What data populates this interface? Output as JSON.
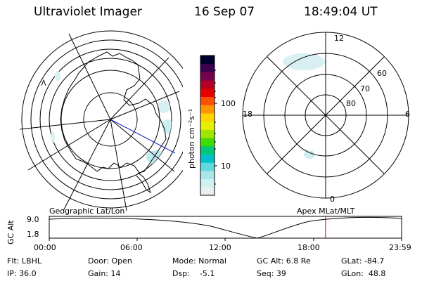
{
  "header": {
    "instrument": "Ultraviolet Imager",
    "date": "16 Sep 07",
    "time": "18:49:04 UT"
  },
  "colorbar": {
    "unit_label": "photon cm⁻²s⁻¹",
    "ticks": [
      "100",
      "10"
    ],
    "colors": [
      "#eeeeee",
      "#d0f0f0",
      "#a8e6e8",
      "#60d8e0",
      "#00c0d0",
      "#00c878",
      "#40dc00",
      "#a0e600",
      "#e6f000",
      "#ffd200",
      "#ff9600",
      "#ff5000",
      "#e60000",
      "#b40028",
      "#780050",
      "#3c0050",
      "#000030"
    ]
  },
  "left_map": {
    "label": "Geographic Lat/Lon"
  },
  "right_map": {
    "label": "Apex MLat/MLT",
    "mlt_labels": {
      "top": "12",
      "bottom": "0",
      "left": "18",
      "right": "6"
    },
    "lat_labels": [
      "60",
      "70",
      "80"
    ]
  },
  "altitude_plot": {
    "ylabel": "GC Alt",
    "yticks": [
      "9.0",
      "1.8"
    ],
    "xticks": [
      "00:00",
      "06:00",
      "12:00",
      "18:00",
      "23:59"
    ],
    "marker_color": "#cc0000",
    "marker_time_hours": 18.82
  },
  "footer": {
    "filter": "Flt: LBHL",
    "door": "Door: Open",
    "mode": "Mode: Normal",
    "gc_alt": "GC Alt: 6.8 Re",
    "glat": "GLat: -84.7",
    "ip": "IP: 36.0",
    "gain": "Gain: 14",
    "dsp": "Dsp:    -5.1",
    "seq": "Seq: 39",
    "glon": "GLon:  48.8"
  }
}
